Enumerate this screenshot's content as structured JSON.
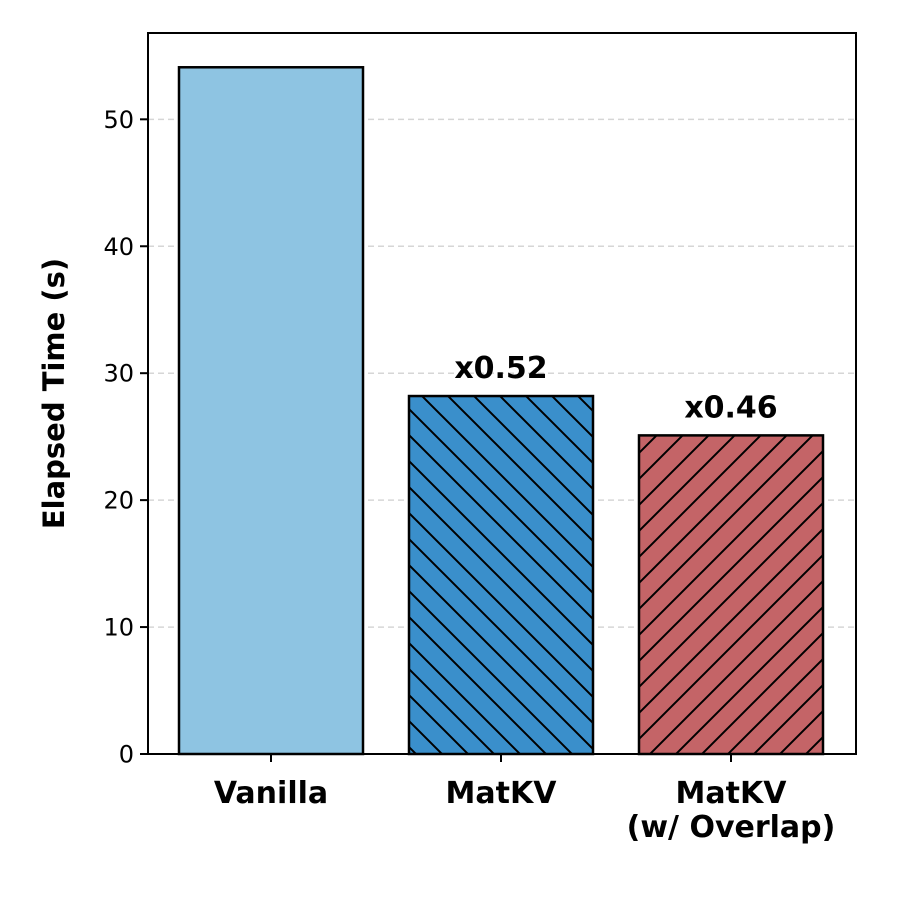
{
  "chart_data": {
    "type": "bar",
    "categories": [
      [
        "Vanilla"
      ],
      [
        "MatKV"
      ],
      [
        "MatKV",
        "(w/ Overlap)"
      ]
    ],
    "values": [
      54.1,
      28.2,
      25.1
    ],
    "data_labels": [
      "",
      "x0.52",
      "x0.46"
    ],
    "title": "",
    "xlabel": "",
    "ylabel": "Elapsed Time (s)",
    "ylim": [
      0,
      56.8
    ],
    "yticks": [
      0,
      10,
      20,
      30,
      40,
      50
    ],
    "grid": "y-dashed",
    "bar_colors": [
      "#8ec4e2",
      "#3a8fcb",
      "#c46467"
    ],
    "bar_hatches": [
      "none",
      "backslash",
      "slash"
    ],
    "edge_color": "#000000",
    "grid_color": "#d6d6d6"
  }
}
